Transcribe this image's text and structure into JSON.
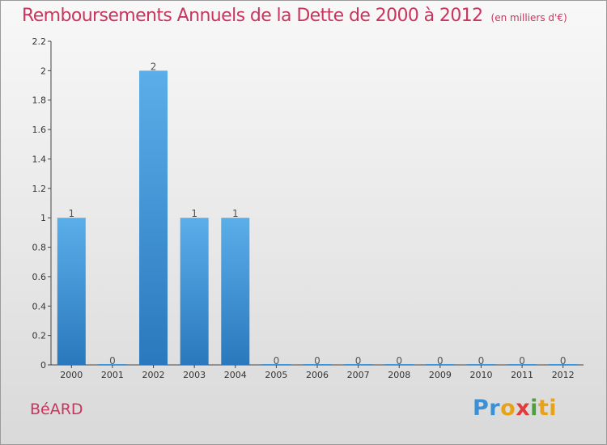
{
  "chart_data": {
    "type": "bar",
    "title": "Remboursements Annuels de la Dette de 2000 à 2012",
    "subtitle": "(en milliers d'€)",
    "categories": [
      "2000",
      "2001",
      "2002",
      "2003",
      "2004",
      "2005",
      "2006",
      "2007",
      "2008",
      "2009",
      "2010",
      "2011",
      "2012"
    ],
    "values": [
      1,
      0,
      2,
      1,
      1,
      0,
      0,
      0,
      0,
      0,
      0,
      0,
      0
    ],
    "data_labels": [
      "1",
      "0",
      "2",
      "1",
      "1",
      "0",
      "0",
      "0",
      "0",
      "0",
      "0",
      "0",
      "0"
    ],
    "ylim": [
      0,
      2.2
    ],
    "yticks": [
      0,
      0.2,
      0.4,
      0.6,
      0.8,
      1,
      1.2,
      1.4,
      1.6,
      1.8,
      2,
      2.2
    ],
    "ytick_labels": [
      "0",
      "0.2",
      "0.4",
      "0.6",
      "0.8",
      "1",
      "1.2",
      "1.4",
      "1.6",
      "1.8",
      "2",
      "2.2"
    ],
    "grid": false,
    "bar_color": "#3a8fd6"
  },
  "footer": {
    "commune": "BéARD",
    "logo_letters": [
      "P",
      "r",
      "o",
      "x",
      "i",
      "ti"
    ]
  }
}
